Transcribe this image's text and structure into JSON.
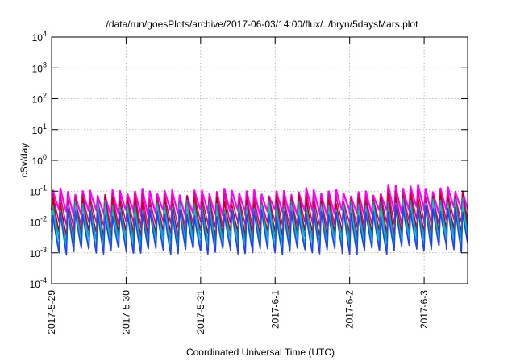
{
  "chart_data": {
    "type": "line",
    "title": "/data/run/goesPlots/archive/2017-06-03/14:00/flux/../bryn/5daysMars.plot",
    "xlabel": "Coordinated Universal Time (UTC)",
    "ylabel": "cSv/day",
    "yscale": "log",
    "ylim": [
      0.0001,
      10000
    ],
    "xlim": [
      "2017-05-29",
      "2017-06-03 14:00"
    ],
    "grid": true,
    "legend": "none",
    "y_ticks": [
      {
        "value": 0.0001,
        "base": "10",
        "exp": "-4"
      },
      {
        "value": 0.001,
        "base": "10",
        "exp": "-3"
      },
      {
        "value": 0.01,
        "base": "10",
        "exp": "-2"
      },
      {
        "value": 0.1,
        "base": "10",
        "exp": "-1"
      },
      {
        "value": 1,
        "base": "10",
        "exp": "0"
      },
      {
        "value": 10,
        "base": "10",
        "exp": "1"
      },
      {
        "value": 100,
        "base": "10",
        "exp": "2"
      },
      {
        "value": 1000,
        "base": "10",
        "exp": "3"
      },
      {
        "value": 10000,
        "base": "10",
        "exp": "4"
      }
    ],
    "x_ticks": [
      {
        "value": "2017-05-29",
        "label": "2017-5-29"
      },
      {
        "value": "2017-05-30",
        "label": "2017-5-30"
      },
      {
        "value": "2017-05-31",
        "label": "2017-5-31"
      },
      {
        "value": "2017-06-01",
        "label": "2017-6-1"
      },
      {
        "value": "2017-06-02",
        "label": "2017-6-2"
      },
      {
        "value": "2017-06-03",
        "label": "2017-6-3"
      }
    ],
    "pattern": {
      "cycle_hours": 2.4,
      "peaks": [
        0.1,
        0.075,
        0.055,
        0.04,
        0.03,
        0.022
      ],
      "troughs": [
        0.02,
        0.008,
        0.004,
        0.0025,
        0.0015,
        0.0011
      ],
      "elevated_from": "2017-06-02 12:00",
      "elevated_factor": 1.35
    },
    "series": [
      {
        "color": "#ff00ff"
      },
      {
        "color": "#e0008a"
      },
      {
        "color": "#b80000"
      },
      {
        "color": "#00a0a0"
      },
      {
        "color": "#00c8c8"
      },
      {
        "color": "#2040ff"
      }
    ]
  }
}
